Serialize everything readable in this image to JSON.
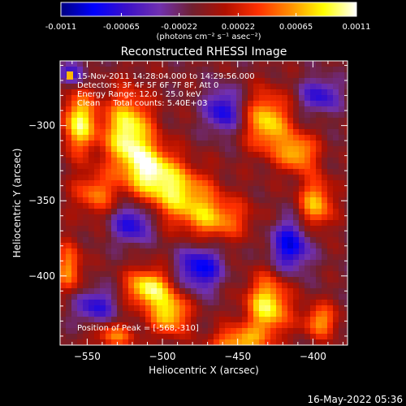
{
  "chart_data": {
    "type": "heatmap",
    "title": "Reconstructed RHESSI Image",
    "xlabel": "Heliocentric X (arcsec)",
    "ylabel": "Heliocentric Y (arcsec)",
    "xlim": [
      -568,
      -377
    ],
    "ylim": [
      -446,
      -257
    ],
    "x_ticks": [
      -550,
      -500,
      -450,
      -400
    ],
    "y_ticks": [
      -300,
      -350,
      -400
    ],
    "colorbar": {
      "unit": "(photons cm⁻² s⁻¹ asec⁻²)",
      "range": [
        -0.0011,
        0.0011
      ],
      "tick_labels": [
        "-0.0011",
        "-0.00065",
        "-0.00022",
        "0.00022",
        "0.00065",
        "0.0011"
      ],
      "tick_values": [
        -0.0011,
        -0.00065,
        -0.00022,
        0.00022,
        0.00065,
        0.0011
      ],
      "colormap": [
        "#000080",
        "#0000ff",
        "#3c10c8",
        "#7030b0",
        "#702030",
        "#b01000",
        "#ff3000",
        "#ff9000",
        "#ffff00",
        "#ffffff"
      ]
    },
    "annotations": [
      "15-Nov-2011 14:28:04.000 to 14:29:56.000",
      "Detectors: 3F 4F 5F 6F 7F 8F, Att 0",
      "Energy Range: 12.0 - 25.0 keV",
      "Clean     Total counts: 5.40E+03"
    ],
    "peak_label": "Position of Peak = [-568,-310]",
    "peak": {
      "x": -568,
      "y": -310
    },
    "sources": [
      {
        "x": -555,
        "y": -298,
        "sx": 8,
        "sy": 14,
        "amp": 0.001
      },
      {
        "x": -523,
        "y": -305,
        "sx": 11,
        "sy": 18,
        "amp": 0.0011
      },
      {
        "x": -507,
        "y": -330,
        "sx": 12,
        "sy": 12,
        "amp": 0.0009
      },
      {
        "x": -488,
        "y": -345,
        "sx": 15,
        "sy": 12,
        "amp": 0.0008
      },
      {
        "x": -465,
        "y": -362,
        "sx": 16,
        "sy": 10,
        "amp": 0.0007
      },
      {
        "x": -430,
        "y": -298,
        "sx": 10,
        "sy": 14,
        "amp": 0.0009
      },
      {
        "x": -410,
        "y": -318,
        "sx": 9,
        "sy": 9,
        "amp": 0.0008
      },
      {
        "x": -398,
        "y": -352,
        "sx": 8,
        "sy": 12,
        "amp": 0.0008
      },
      {
        "x": -545,
        "y": -345,
        "sx": 10,
        "sy": 10,
        "amp": 0.0006
      },
      {
        "x": -562,
        "y": -395,
        "sx": 6,
        "sy": 12,
        "amp": 0.0007
      },
      {
        "x": -510,
        "y": -408,
        "sx": 10,
        "sy": 9,
        "amp": 0.001
      },
      {
        "x": -495,
        "y": -425,
        "sx": 9,
        "sy": 10,
        "amp": 0.0009
      },
      {
        "x": -430,
        "y": -420,
        "sx": 10,
        "sy": 14,
        "amp": 0.001
      },
      {
        "x": -450,
        "y": -445,
        "sx": 12,
        "sy": 8,
        "amp": 0.0008
      },
      {
        "x": -532,
        "y": -440,
        "sx": 10,
        "sy": 6,
        "amp": 0.0006
      },
      {
        "x": -395,
        "y": -430,
        "sx": 8,
        "sy": 8,
        "amp": 0.0007
      },
      {
        "x": -460,
        "y": -290,
        "sx": 8,
        "sy": 10,
        "amp": -0.0007
      },
      {
        "x": -475,
        "y": -395,
        "sx": 10,
        "sy": 10,
        "amp": -0.0008
      },
      {
        "x": -520,
        "y": -365,
        "sx": 9,
        "sy": 9,
        "amp": -0.0007
      },
      {
        "x": -415,
        "y": -380,
        "sx": 9,
        "sy": 12,
        "amp": -0.0008
      },
      {
        "x": -545,
        "y": -420,
        "sx": 10,
        "sy": 8,
        "amp": -0.0006
      },
      {
        "x": -395,
        "y": -280,
        "sx": 9,
        "sy": 8,
        "amp": -0.0006
      },
      {
        "x": -560,
        "y": -265,
        "sx": 8,
        "sy": 6,
        "amp": -0.0005
      }
    ]
  },
  "footer": {
    "timestamp": "16-May-2022 05:36"
  }
}
